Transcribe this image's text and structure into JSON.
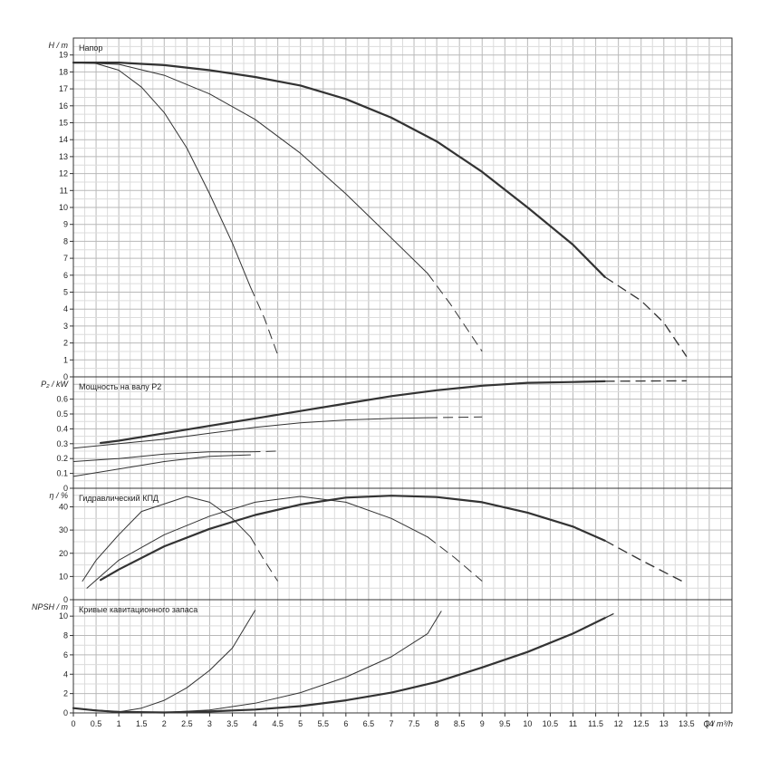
{
  "chart_data": {
    "type": "line",
    "x_axis": {
      "label": "Q / m³/h",
      "range": [
        0,
        14.5
      ],
      "tick_step": 0.5,
      "tick_labels": [
        "0",
        "0.5",
        "1",
        "1.5",
        "2",
        "2.5",
        "3",
        "3.5",
        "4",
        "4.5",
        "5",
        "5.5",
        "6",
        "6.5",
        "7",
        "7.5",
        "8",
        "8.5",
        "9",
        "9.5",
        "10",
        "10.5",
        "11",
        "11.5",
        "12",
        "12.5",
        "13",
        "13.5",
        "14"
      ],
      "grid": true
    },
    "panels": [
      {
        "key": "head",
        "title": "Напор",
        "ylabel": "H / m",
        "ylim": [
          0,
          20
        ],
        "ytick_step": 1,
        "ytick_labels": [
          "0",
          "1",
          "2",
          "3",
          "4",
          "5",
          "6",
          "7",
          "8",
          "9",
          "10",
          "11",
          "12",
          "13",
          "14",
          "15",
          "16",
          "17",
          "18",
          "19"
        ],
        "series": [
          {
            "width": 2.2,
            "solid": [
              [
                0,
                18.55
              ],
              [
                1,
                18.55
              ],
              [
                2,
                18.4
              ],
              [
                3,
                18.1
              ],
              [
                4,
                17.7
              ],
              [
                5,
                17.2
              ],
              [
                6,
                16.4
              ],
              [
                7,
                15.3
              ],
              [
                8,
                13.9
              ],
              [
                9,
                12.1
              ],
              [
                10,
                10
              ],
              [
                11,
                7.8
              ],
              [
                11.7,
                5.9
              ]
            ],
            "dashed": [
              [
                11.7,
                5.9
              ],
              [
                12.5,
                4.5
              ],
              [
                13,
                3.2
              ],
              [
                13.5,
                1.2
              ]
            ]
          },
          {
            "width": 1.0,
            "solid": [
              [
                0,
                18.55
              ],
              [
                1,
                18.45
              ],
              [
                2,
                17.8
              ],
              [
                3,
                16.7
              ],
              [
                4,
                15.2
              ],
              [
                5,
                13.2
              ],
              [
                6,
                10.8
              ],
              [
                7,
                8.2
              ],
              [
                7.8,
                6.1
              ]
            ],
            "dashed": [
              [
                7.8,
                6.1
              ],
              [
                8.3,
                4.3
              ],
              [
                9,
                1.5
              ]
            ]
          },
          {
            "width": 1.0,
            "solid": [
              [
                0,
                18.55
              ],
              [
                0.5,
                18.5
              ],
              [
                1,
                18.1
              ],
              [
                1.5,
                17.1
              ],
              [
                2,
                15.6
              ],
              [
                2.5,
                13.5
              ],
              [
                3,
                10.8
              ],
              [
                3.5,
                7.9
              ],
              [
                3.9,
                5.3
              ]
            ],
            "dashed": [
              [
                3.9,
                5.3
              ],
              [
                4.2,
                3.5
              ],
              [
                4.5,
                1.3
              ]
            ]
          }
        ]
      },
      {
        "key": "power",
        "title": "Мощность на валу P2",
        "ylabel": "P₂ / kW",
        "ylim": [
          0,
          0.75
        ],
        "ytick_step": 0.1,
        "ytick_labels": [
          "0",
          "0.1",
          "0.2",
          "0.3",
          "0.4",
          "0.5",
          "0.6"
        ],
        "series": [
          {
            "width": 2.2,
            "solid": [
              [
                0.6,
                0.305
              ],
              [
                1,
                0.32
              ],
              [
                2,
                0.37
              ],
              [
                3,
                0.42
              ],
              [
                4,
                0.47
              ],
              [
                5,
                0.52
              ],
              [
                6,
                0.57
              ],
              [
                7,
                0.62
              ],
              [
                8,
                0.66
              ],
              [
                9,
                0.69
              ],
              [
                10,
                0.71
              ],
              [
                11,
                0.715
              ],
              [
                11.7,
                0.72
              ]
            ],
            "dashed": [
              [
                11.7,
                0.72
              ],
              [
                12.5,
                0.722
              ],
              [
                13.5,
                0.723
              ]
            ]
          },
          {
            "width": 1.0,
            "solid": [
              [
                0,
                0.27
              ],
              [
                1,
                0.3
              ],
              [
                2,
                0.33
              ],
              [
                3,
                0.37
              ],
              [
                4,
                0.41
              ],
              [
                5,
                0.44
              ],
              [
                6,
                0.46
              ],
              [
                7,
                0.47
              ],
              [
                7.8,
                0.475
              ]
            ],
            "dashed": [
              [
                7.8,
                0.475
              ],
              [
                9,
                0.48
              ]
            ]
          },
          {
            "width": 1.0,
            "solid": [
              [
                0,
                0.18
              ],
              [
                1,
                0.2
              ],
              [
                2,
                0.23
              ],
              [
                3,
                0.245
              ],
              [
                3.9,
                0.245
              ]
            ],
            "dashed": [
              [
                3.9,
                0.245
              ],
              [
                4.5,
                0.25
              ]
            ]
          },
          {
            "width": 1.0,
            "solid": [
              [
                0,
                0.08
              ],
              [
                1,
                0.13
              ],
              [
                2,
                0.18
              ],
              [
                3,
                0.215
              ],
              [
                3.9,
                0.225
              ]
            ],
            "dashed": []
          }
        ]
      },
      {
        "key": "efficiency",
        "title": "Гидравлический КПД",
        "ylabel": "η / %",
        "ylim": [
          0,
          48
        ],
        "ytick_step": 10,
        "ytick_labels": [
          "0",
          "10",
          "20",
          "30",
          "40"
        ],
        "series": [
          {
            "width": 2.2,
            "solid": [
              [
                0.6,
                8.5
              ],
              [
                1,
                13
              ],
              [
                2,
                23
              ],
              [
                3,
                30.5
              ],
              [
                4,
                36.5
              ],
              [
                5,
                41
              ],
              [
                6,
                44
              ],
              [
                7,
                44.8
              ],
              [
                8,
                44.2
              ],
              [
                9,
                42
              ],
              [
                10,
                37.5
              ],
              [
                11,
                31.5
              ],
              [
                11.7,
                25.5
              ]
            ],
            "dashed": [
              [
                11.7,
                25.5
              ],
              [
                12.5,
                17
              ],
              [
                13,
                12
              ],
              [
                13.5,
                7
              ]
            ]
          },
          {
            "width": 1.0,
            "solid": [
              [
                0.3,
                5
              ],
              [
                1,
                17
              ],
              [
                2,
                28
              ],
              [
                3,
                36
              ],
              [
                4,
                42
              ],
              [
                5,
                44.5
              ],
              [
                6,
                42
              ],
              [
                7,
                35
              ],
              [
                7.8,
                27
              ]
            ],
            "dashed": [
              [
                7.8,
                27
              ],
              [
                8.4,
                18
              ],
              [
                9,
                8
              ]
            ]
          },
          {
            "width": 1.0,
            "solid": [
              [
                0.2,
                8
              ],
              [
                0.5,
                17
              ],
              [
                1,
                28
              ],
              [
                1.5,
                38
              ],
              [
                2.5,
                44.5
              ],
              [
                3,
                42
              ],
              [
                3.5,
                35
              ],
              [
                3.9,
                27
              ]
            ],
            "dashed": [
              [
                3.9,
                27
              ],
              [
                4.2,
                17
              ],
              [
                4.5,
                8
              ]
            ]
          }
        ]
      },
      {
        "key": "npsh",
        "title": "Кривые кавитационного запаса",
        "ylabel": "NPSH / m",
        "ylim": [
          0,
          11.7
        ],
        "ytick_step": 2,
        "ytick_labels": [
          "0",
          "2",
          "4",
          "6",
          "8",
          "10"
        ],
        "series": [
          {
            "width": 2.2,
            "solid": [
              [
                0,
                0.5
              ],
              [
                0.5,
                0.25
              ],
              [
                1,
                0.1
              ],
              [
                2,
                0.05
              ],
              [
                3,
                0.15
              ],
              [
                4,
                0.35
              ],
              [
                5,
                0.7
              ],
              [
                6,
                1.3
              ],
              [
                7,
                2.1
              ],
              [
                8,
                3.2
              ],
              [
                9,
                4.7
              ],
              [
                10,
                6.3
              ],
              [
                11,
                8.2
              ],
              [
                11.7,
                9.8
              ]
            ],
            "dashed": [
              [
                11.7,
                9.8
              ],
              [
                12,
                10.5
              ]
            ]
          },
          {
            "width": 1.0,
            "solid": [
              [
                0,
                0.5
              ],
              [
                1,
                0.1
              ],
              [
                2,
                0.05
              ],
              [
                3,
                0.3
              ],
              [
                4,
                1
              ],
              [
                5,
                2.1
              ],
              [
                6,
                3.7
              ],
              [
                7,
                5.8
              ],
              [
                7.8,
                8.2
              ],
              [
                8.1,
                10.5
              ]
            ],
            "dashed": []
          },
          {
            "width": 1.0,
            "solid": [
              [
                0,
                0.5
              ],
              [
                1,
                0.1
              ],
              [
                1.5,
                0.5
              ],
              [
                2,
                1.3
              ],
              [
                2.5,
                2.6
              ],
              [
                3,
                4.4
              ],
              [
                3.5,
                6.7
              ],
              [
                4,
                10.6
              ]
            ],
            "dashed": []
          }
        ]
      }
    ]
  }
}
